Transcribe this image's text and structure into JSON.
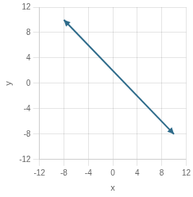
{
  "chart_data": {
    "type": "line",
    "x": [
      -8,
      10
    ],
    "values": [
      10,
      -8
    ],
    "color": "#2e6b8a",
    "xlim": [
      -12,
      12
    ],
    "ylim": [
      -12,
      12
    ],
    "xticks": [
      -12,
      -8,
      -4,
      0,
      4,
      8,
      12
    ],
    "yticks": [
      -12,
      -8,
      -4,
      0,
      4,
      8,
      12
    ],
    "xlabel": "x",
    "ylabel": "y",
    "grid": true
  }
}
